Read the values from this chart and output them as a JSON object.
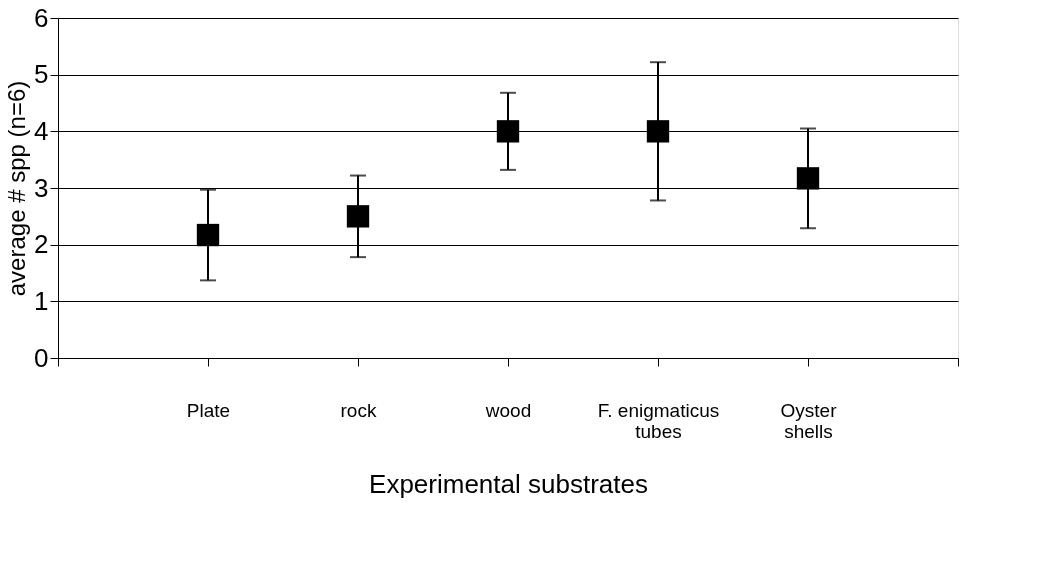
{
  "chart_data": {
    "type": "scatter",
    "xlabel": "Experimental substrates",
    "ylabel": "average # spp (n=6)",
    "categories": [
      "Plate",
      "rock",
      "wood",
      "F. enigmaticus tubes",
      "Oyster shells"
    ],
    "values": [
      2.17,
      2.5,
      4.0,
      4.0,
      3.17
    ],
    "errors": [
      0.8,
      0.72,
      0.68,
      1.22,
      0.88
    ],
    "color": "#000000",
    "marker": "square",
    "ylim": [
      0,
      6
    ],
    "yticks": [
      0,
      1,
      2,
      3,
      4,
      5,
      6
    ],
    "grid": "y"
  }
}
